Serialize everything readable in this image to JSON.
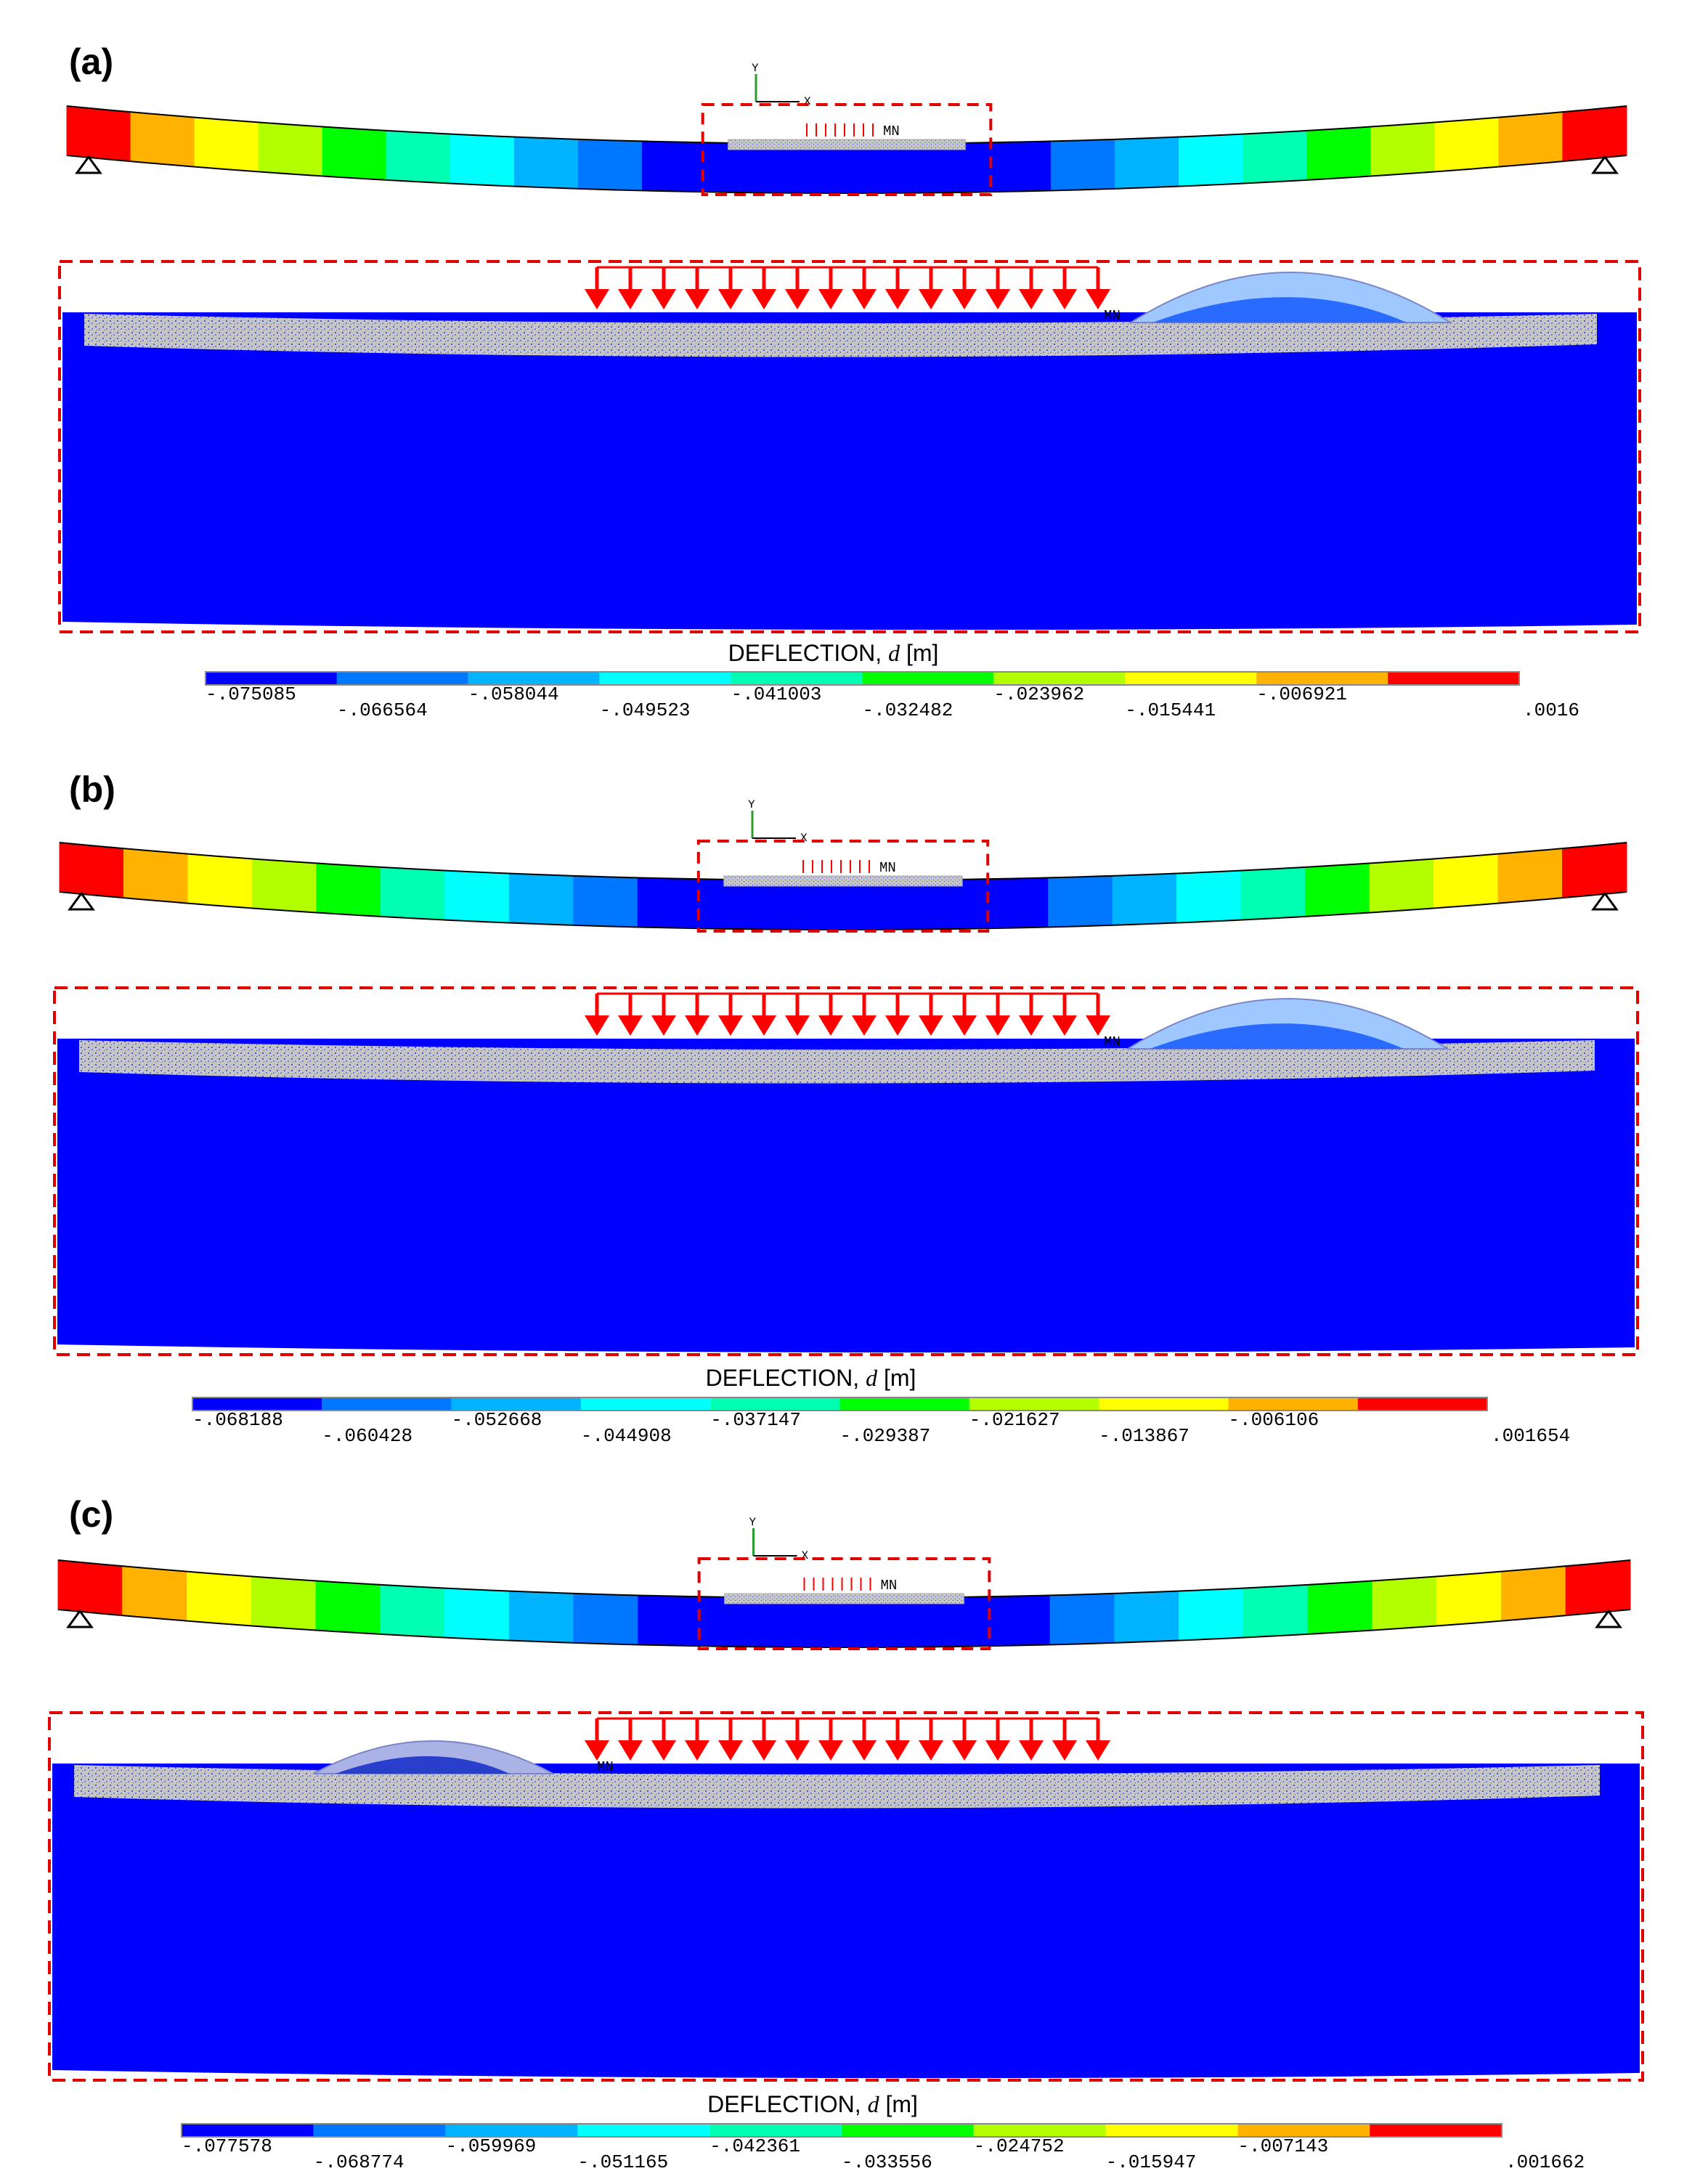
{
  "figure": {
    "colors": {
      "contour": [
        "#0000ff",
        "#0077ff",
        "#00b3ff",
        "#00ffff",
        "#00ffb3",
        "#00ff00",
        "#b3ff00",
        "#ffff00",
        "#ffb300",
        "#ff0000"
      ],
      "crust": "#c0c0c0",
      "water": "#0000ff",
      "load": "#ff0000",
      "dashed_box": "#e00000"
    },
    "panels": [
      {
        "label": "(a)",
        "mn_label": "MN",
        "load_arrows": 16,
        "bump_side": "right",
        "legend": {
          "title": "DEFLECTION,",
          "variable": "d",
          "unit": "[m]",
          "ticks": [
            "-.075085",
            "-.066564",
            "-.058044",
            "-.049523",
            "-.041003",
            "-.032482",
            "-.023962",
            "-.015441",
            "-.006921",
            ".0016"
          ]
        }
      },
      {
        "label": "(b)",
        "mn_label": "MN",
        "load_arrows": 16,
        "bump_side": "right",
        "legend": {
          "title": "DEFLECTION,",
          "variable": "d",
          "unit": "[m]",
          "ticks": [
            "-.068188",
            "-.060428",
            "-.052668",
            "-.044908",
            "-.037147",
            "-.029387",
            "-.021627",
            "-.013867",
            "-.006106",
            ".001654"
          ]
        }
      },
      {
        "label": "(c)",
        "mn_label": "MN",
        "load_arrows": 16,
        "bump_side": "left",
        "legend": {
          "title": "DEFLECTION,",
          "variable": "d",
          "unit": "[m]",
          "ticks": [
            "-.077578",
            "-.068774",
            "-.059969",
            "-.051165",
            "-.042361",
            "-.033556",
            "-.024752",
            "-.015947",
            "-.007143",
            ".001662"
          ]
        }
      }
    ],
    "axes": {
      "x": "X",
      "y": "Y"
    }
  }
}
